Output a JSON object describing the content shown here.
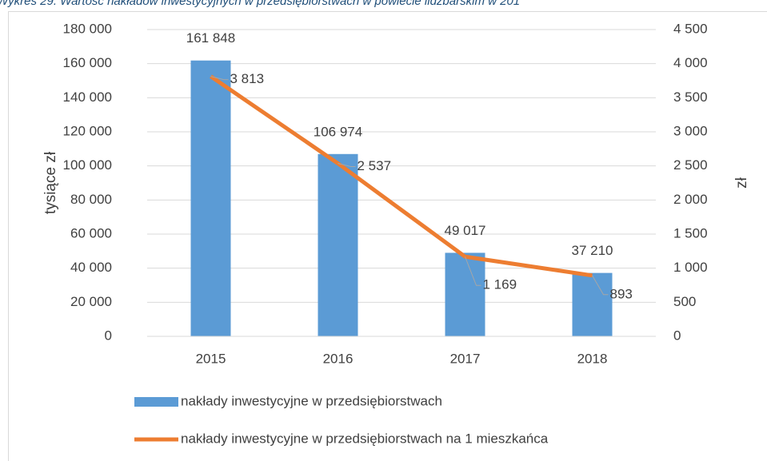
{
  "chart_data": {
    "type": "bar_line",
    "title": "Wykres 29. Wartość nakładów inwestycyjnych w przedsiębiorstwach w powiecie lidzbarskim w 201",
    "ylabel": "tysiące zł",
    "y2label": "zł",
    "categories": [
      "2015",
      "2016",
      "2017",
      "2018"
    ],
    "series": [
      {
        "name": "nakłady inwestycyjne w przedsiębiorstwach",
        "type": "bar",
        "color": "#5b9bd5",
        "axis": "y",
        "values": [
          161848,
          106974,
          49017,
          37210
        ],
        "value_labels": [
          "161 848",
          "106 974",
          "49 017",
          "37 210"
        ]
      },
      {
        "name": "nakłady inwestycyjne w przedsiębiorstwach na 1 mieszkańca",
        "type": "line",
        "color": "#ed7d31",
        "axis": "y2",
        "values": [
          3813,
          2537,
          1169,
          893
        ],
        "value_labels": [
          "3 813",
          "2 537",
          "1 169",
          "893"
        ]
      }
    ],
    "ylim": [
      0,
      180000
    ],
    "yticks": [
      0,
      {
        "value": 20000,
        "label": "20 000"
      },
      {
        "value": 40000,
        "label": "40 000"
      },
      {
        "value": 60000,
        "label": "60 000"
      },
      {
        "value": 80000,
        "label": "80 000"
      },
      {
        "value": 100000,
        "label": "100 000"
      },
      {
        "value": 120000,
        "label": "120 000"
      },
      {
        "value": 140000,
        "label": "140 000"
      },
      {
        "value": 160000,
        "label": "160 000"
      },
      {
        "value": 180000,
        "label": "180 000"
      }
    ],
    "y2lim": [
      0,
      4500
    ],
    "y2ticks": [
      0,
      500,
      {
        "value": 1000,
        "label": "1 000"
      },
      {
        "value": 1500,
        "label": "1 500"
      },
      {
        "value": 2000,
        "label": "2 000"
      },
      {
        "value": 2500,
        "label": "2 500"
      },
      {
        "value": 3000,
        "label": "3 000"
      },
      {
        "value": 3500,
        "label": "3 500"
      },
      {
        "value": 4000,
        "label": "4 000"
      },
      {
        "value": 4500,
        "label": "4 500"
      }
    ],
    "grid": true
  }
}
